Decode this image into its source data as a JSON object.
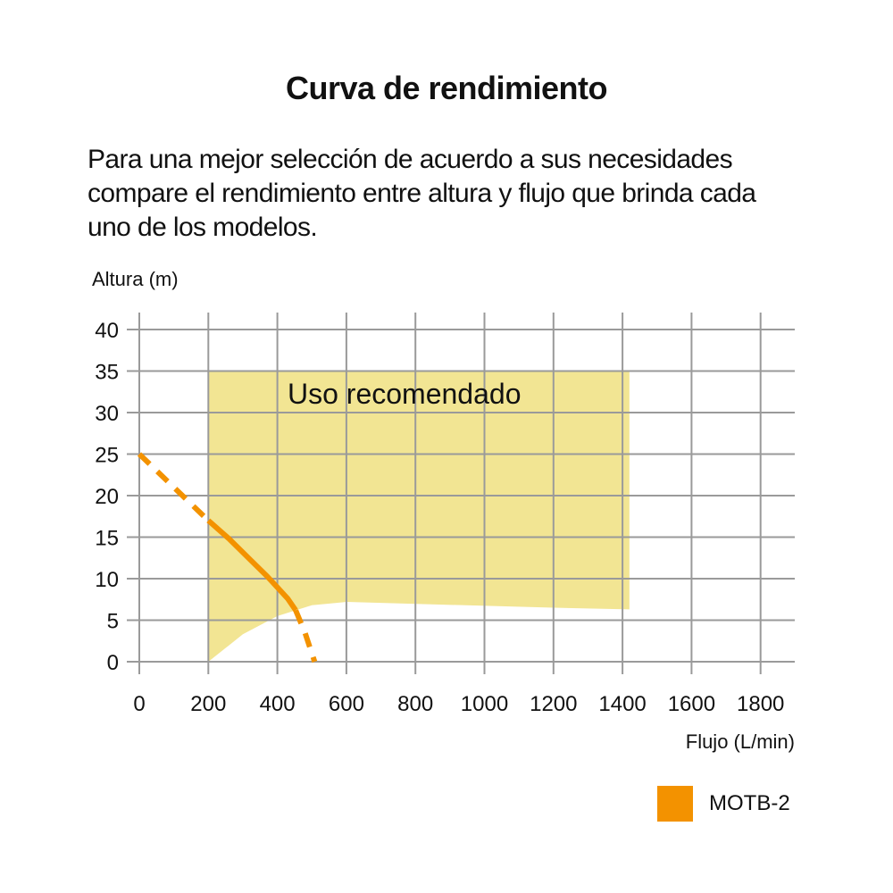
{
  "chart_data": {
    "type": "line",
    "title": "Curva de rendimiento",
    "subtitle": "Para una mejor selección de acuerdo a sus necesidades compare el rendimiento entre altura y flujo que brinda cada uno de los modelos.",
    "xlabel": "Flujo (L/min)",
    "ylabel": "Altura (m)",
    "xlim": [
      0,
      1900
    ],
    "ylim": [
      0,
      40
    ],
    "xticks": [
      0,
      200,
      400,
      600,
      800,
      1000,
      1200,
      1400,
      1600,
      1800
    ],
    "yticks": [
      0,
      5,
      10,
      15,
      20,
      25,
      30,
      35,
      40
    ],
    "grid": true,
    "legend_position": "bottom-right",
    "region": {
      "label": "Uso recomendado",
      "color": "#f2e593",
      "top": 35,
      "lower_boundary": [
        [
          200,
          0
        ],
        [
          300,
          3.3
        ],
        [
          400,
          5.5
        ],
        [
          500,
          6.8
        ],
        [
          600,
          7.2
        ],
        [
          1200,
          6.5
        ],
        [
          1420,
          6.3
        ]
      ]
    },
    "series": [
      {
        "name": "MOTB-2",
        "color": "#f39200",
        "dashed_start": [
          [
            0,
            25
          ],
          [
            200,
            17
          ]
        ],
        "solid": [
          [
            200,
            17
          ],
          [
            260,
            14.8
          ],
          [
            321,
            12.3
          ],
          [
            370,
            10.3
          ],
          [
            399,
            9
          ],
          [
            430,
            7.6
          ],
          [
            453,
            6.2
          ]
        ],
        "dashed_end": [
          [
            453,
            6.2
          ],
          [
            480,
            3.5
          ],
          [
            508,
            0
          ]
        ]
      }
    ]
  }
}
